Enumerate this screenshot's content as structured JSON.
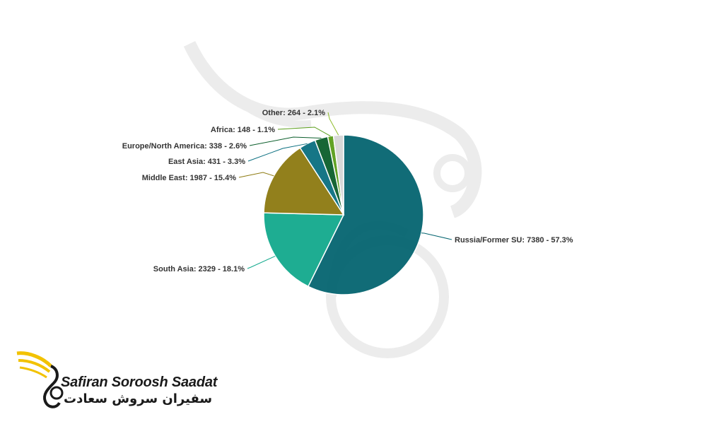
{
  "chart_data": {
    "type": "pie",
    "title": "",
    "slices": [
      {
        "label": "Russia/Former SU",
        "value": 7380,
        "percent": 57.3,
        "color": "#056570"
      },
      {
        "label": "South Asia",
        "value": 2329,
        "percent": 18.1,
        "color": "#12a98d"
      },
      {
        "label": "Middle East",
        "value": 1987,
        "percent": 15.4,
        "color": "#8d7a10"
      },
      {
        "label": "East Asia",
        "value": 431,
        "percent": 3.3,
        "color": "#0a6f80"
      },
      {
        "label": "Europe/North America",
        "value": 338,
        "percent": 2.6,
        "color": "#0b5e2b"
      },
      {
        "label": "Africa",
        "value": 148,
        "percent": 1.1,
        "color": "#5a9e1a"
      },
      {
        "label": "Other",
        "value": 264,
        "percent": 2.1,
        "color": "#d6d6d6"
      }
    ],
    "label_texts": [
      "Russia/Former SU: 7380 - 57.3%",
      "South Asia: 2329 - 18.1%",
      "Middle East: 1987 - 15.4%",
      "East Asia: 431 - 3.3%",
      "Europe/North America: 338 - 2.6%",
      "Africa: 148 - 1.1%",
      "Other: 264 - 2.1%"
    ]
  },
  "logo": {
    "latin_text": "Safiran Soroosh Saadat",
    "persian_text": "سفیران سروش سعادت",
    "accent_color": "#f2c200",
    "icon": "phoenix-bird-icon"
  }
}
